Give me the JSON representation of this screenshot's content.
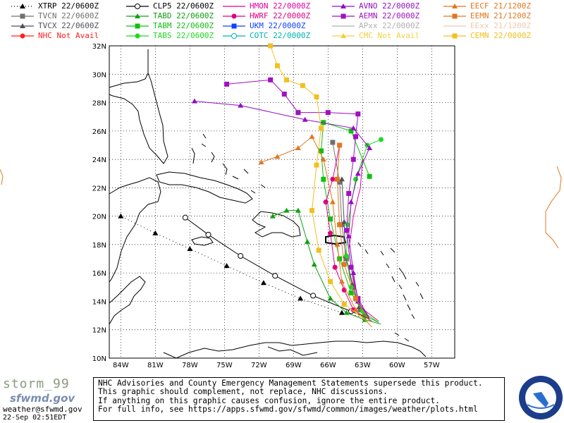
{
  "legend": {
    "col1": [
      {
        "model": "XTRP",
        "time": "22/0600Z",
        "color": "#000000",
        "marker": "triangle",
        "dashed": true
      },
      {
        "model": "TVCN",
        "time": "22/0600Z",
        "color": "#707070",
        "marker": "square"
      },
      {
        "model": "TVCX",
        "time": "22/0600Z",
        "color": "#505060",
        "marker": "triangle"
      },
      {
        "model": "NHC",
        "time": "Not Avail",
        "color": "#ff2020",
        "marker": "dot"
      }
    ],
    "col2": [
      {
        "model": "CLP5",
        "time": "22/0600Z",
        "color": "#000000",
        "marker": "circle"
      },
      {
        "model": "TABD",
        "time": "22/0600Z",
        "color": "#10a010",
        "marker": "triangle"
      },
      {
        "model": "TABM",
        "time": "22/0600Z",
        "color": "#10c010",
        "marker": "square"
      },
      {
        "model": "TABS",
        "time": "22/0600Z",
        "color": "#20d820",
        "marker": "dot"
      }
    ],
    "col3": [
      {
        "model": "HMON",
        "time": "22/0000Z",
        "color": "#e000a0",
        "marker": "none"
      },
      {
        "model": "HWRF",
        "time": "22/0000Z",
        "color": "#e00080",
        "marker": "dot"
      },
      {
        "model": "UKM",
        "time": "22/0000Z",
        "color": "#1040ff",
        "marker": "square"
      },
      {
        "model": "COTC",
        "time": "22/0000Z",
        "color": "#00b0b0",
        "marker": "circle"
      }
    ],
    "col4": [
      {
        "model": "AVNO",
        "time": "22/0000Z",
        "color": "#9010c0",
        "marker": "triangle"
      },
      {
        "model": "AEMN",
        "time": "22/0000Z",
        "color": "#a010c0",
        "marker": "square"
      },
      {
        "model": "APxx",
        "time": "22/0000Z",
        "color": "#b0b0b0",
        "marker": "none"
      },
      {
        "model": "CMC",
        "time": "Not Avail",
        "color": "#f0d040",
        "marker": "triangle"
      }
    ],
    "col5": [
      {
        "model": "EECF",
        "time": "21/1200Z",
        "color": "#e07820",
        "marker": "triangle"
      },
      {
        "model": "EEMN",
        "time": "21/1200Z",
        "color": "#e07820",
        "marker": "square"
      },
      {
        "model": "EExx",
        "time": "21/1200Z",
        "color": "#f0c8b0",
        "marker": "none"
      },
      {
        "model": "CEMN",
        "time": "22/0000Z",
        "color": "#f0c020",
        "marker": "square"
      }
    ]
  },
  "map": {
    "lat_labels": [
      "32N",
      "30N",
      "28N",
      "26N",
      "24N",
      "22N",
      "20N",
      "18N",
      "16N",
      "14N",
      "12N",
      "10N"
    ],
    "lon_labels": [
      "84W",
      "81W",
      "78W",
      "75W",
      "72W",
      "69W",
      "66W",
      "63W",
      "60W",
      "57W"
    ],
    "lat_values": [
      32,
      30,
      28,
      26,
      24,
      22,
      20,
      18,
      16,
      14,
      12,
      10
    ],
    "lon_values": [
      -84,
      -81,
      -78,
      -75,
      -72,
      -69,
      -66,
      -63,
      -60,
      -57
    ],
    "lat_range": [
      10,
      32
    ],
    "lon_range": [
      -85,
      -55
    ],
    "grid": true
  },
  "tracks": [
    {
      "model": "XTRP",
      "color": "#000000",
      "dashed": true,
      "marker": "triangle",
      "points": [
        [
          -62.4,
          12.8
        ],
        [
          -64.8,
          13.2
        ],
        [
          -68.4,
          14.2
        ],
        [
          -71.6,
          15.3
        ],
        [
          -74.8,
          16.5
        ],
        [
          -78.0,
          17.7
        ],
        [
          -81.0,
          18.8
        ],
        [
          -84.0,
          20.0
        ]
      ]
    },
    {
      "model": "CLP5",
      "color": "#000000",
      "marker": "circle",
      "points": [
        [
          -62.4,
          12.8
        ],
        [
          -64.0,
          13.3
        ],
        [
          -67.3,
          14.4
        ],
        [
          -70.6,
          15.8
        ],
        [
          -73.6,
          17.2
        ],
        [
          -76.4,
          18.7
        ],
        [
          -78.4,
          19.9
        ]
      ]
    },
    {
      "model": "TVCN",
      "color": "#707070",
      "marker": "square",
      "points": [
        [
          -62.4,
          12.8
        ],
        [
          -63.2,
          13.4
        ],
        [
          -63.8,
          15.0
        ],
        [
          -64.4,
          17.0
        ],
        [
          -64.8,
          19.4
        ],
        [
          -65.0,
          22.4
        ],
        [
          -65.6,
          25.2
        ]
      ]
    },
    {
      "model": "TVCX",
      "color": "#505060",
      "marker": "triangle",
      "points": [
        [
          -62.4,
          12.8
        ],
        [
          -63.3,
          13.6
        ],
        [
          -63.9,
          15.2
        ],
        [
          -64.5,
          17.2
        ],
        [
          -64.6,
          19.6
        ],
        [
          -64.8,
          22.6
        ]
      ]
    },
    {
      "model": "TABD",
      "color": "#10a010",
      "marker": "triangle",
      "points": [
        [
          -61.4,
          12.4
        ],
        [
          -62.8,
          12.7
        ],
        [
          -64.4,
          13.2
        ],
        [
          -65.8,
          14.2
        ],
        [
          -67.2,
          16.6
        ],
        [
          -67.8,
          18.2
        ],
        [
          -68.6,
          20.4
        ],
        [
          -69.6,
          20.4
        ],
        [
          -70.8,
          20.0
        ]
      ]
    },
    {
      "model": "TABM",
      "color": "#10c010",
      "marker": "square",
      "points": [
        [
          -61.6,
          12.5
        ],
        [
          -62.8,
          13.0
        ],
        [
          -64.0,
          14.6
        ],
        [
          -65.0,
          17.0
        ],
        [
          -65.8,
          19.8
        ],
        [
          -66.4,
          22.6
        ],
        [
          -66.6,
          24.6
        ],
        [
          -66.4,
          26.6
        ],
        [
          -64.0,
          26.0
        ],
        [
          -62.4,
          22.8
        ]
      ]
    },
    {
      "model": "TABS",
      "color": "#20d820",
      "marker": "dot",
      "points": [
        [
          -61.6,
          12.5
        ],
        [
          -63.0,
          13.3
        ],
        [
          -64.0,
          15.0
        ],
        [
          -64.4,
          17.2
        ],
        [
          -64.3,
          19.4
        ],
        [
          -63.6,
          22.6
        ],
        [
          -62.6,
          25.0
        ],
        [
          -61.4,
          25.4
        ]
      ]
    },
    {
      "model": "HMON",
      "color": "#e000a0",
      "marker": "none",
      "points": [
        [
          -61.6,
          12.6
        ],
        [
          -63.2,
          13.6
        ],
        [
          -63.8,
          15.4
        ],
        [
          -64.2,
          17.6
        ],
        [
          -63.8,
          20.0
        ],
        [
          -63.2,
          22.0
        ],
        [
          -63.0,
          24.0
        ]
      ]
    },
    {
      "model": "HWRF",
      "color": "#e00080",
      "marker": "dot",
      "points": [
        [
          -62.2,
          12.6
        ],
        [
          -63.8,
          13.4
        ],
        [
          -64.6,
          14.8
        ],
        [
          -65.4,
          16.4
        ],
        [
          -65.8,
          18.8
        ],
        [
          -66.2,
          21.0
        ],
        [
          -65.6,
          22.6
        ],
        [
          -65.0,
          25.0
        ]
      ]
    },
    {
      "model": "AVNO",
      "color": "#9010c0",
      "marker": "triangle",
      "points": [
        [
          -62.4,
          12.8
        ],
        [
          -63.4,
          14.0
        ],
        [
          -63.8,
          16.0
        ],
        [
          -64.2,
          18.6
        ],
        [
          -64.0,
          21.0
        ],
        [
          -63.4,
          23.0
        ],
        [
          -62.4,
          24.8
        ],
        [
          -63.8,
          26.2
        ],
        [
          -68.0,
          26.8
        ],
        [
          -73.6,
          27.8
        ],
        [
          -77.6,
          28.1
        ]
      ]
    },
    {
      "model": "AEMN",
      "color": "#a010c0",
      "marker": "square",
      "points": [
        [
          -62.4,
          12.8
        ],
        [
          -63.4,
          14.2
        ],
        [
          -64.0,
          16.4
        ],
        [
          -64.4,
          19.0
        ],
        [
          -64.2,
          21.6
        ],
        [
          -63.8,
          24.0
        ],
        [
          -63.6,
          25.6
        ],
        [
          -63.4,
          27.2
        ],
        [
          -66.0,
          27.3
        ],
        [
          -68.6,
          27.3
        ],
        [
          -69.8,
          28.6
        ],
        [
          -71.0,
          29.6
        ],
        [
          -74.8,
          29.3
        ]
      ]
    },
    {
      "model": "EECF",
      "color": "#e07820",
      "marker": "triangle",
      "points": [
        [
          -62.2,
          12.2
        ],
        [
          -63.6,
          13.4
        ],
        [
          -64.8,
          15.4
        ],
        [
          -65.2,
          18.0
        ],
        [
          -65.6,
          21.0
        ],
        [
          -66.4,
          24.0
        ],
        [
          -67.4,
          25.6
        ],
        [
          -68.6,
          24.8
        ],
        [
          -70.4,
          24.2
        ],
        [
          -71.8,
          23.8
        ]
      ]
    },
    {
      "model": "EEMN",
      "color": "#e07820",
      "marker": "square",
      "points": [
        [
          -62.4,
          12.6
        ],
        [
          -63.6,
          14.2
        ],
        [
          -64.6,
          16.6
        ],
        [
          -65.0,
          19.4
        ],
        [
          -65.2,
          22.6
        ],
        [
          -65.0,
          25.0
        ]
      ]
    },
    {
      "model": "CEMN",
      "color": "#f0c020",
      "marker": "square",
      "points": [
        [
          -62.6,
          12.6
        ],
        [
          -64.6,
          13.8
        ],
        [
          -65.8,
          15.4
        ],
        [
          -66.8,
          17.6
        ],
        [
          -67.4,
          20.4
        ],
        [
          -67.0,
          23.6
        ],
        [
          -66.6,
          26.2
        ],
        [
          -67.0,
          28.4
        ],
        [
          -68.2,
          29.2
        ],
        [
          -69.6,
          29.6
        ],
        [
          -70.4,
          30.6
        ],
        [
          -71.0,
          32.0
        ]
      ]
    }
  ],
  "footer": {
    "brand": "storm_99",
    "site": "sfwmd.gov",
    "email": "weather@sfwmd.gov",
    "timestamp": "22-Sep 02:51EDT",
    "notice": [
      "NHC Advisories and County Emergency Management Statements supersede this product.",
      "This graphic should complement, not replace, NHC discussions.",
      "If anything on this graphic causes confusion, ignore the entire product.",
      "For full info, see  https://apps.sfwmd.gov/sfwmd/common/images/weather/plots.html"
    ],
    "seal_text": "SOUTH FLORIDA WATER MANAGEMENT DISTRICT"
  }
}
